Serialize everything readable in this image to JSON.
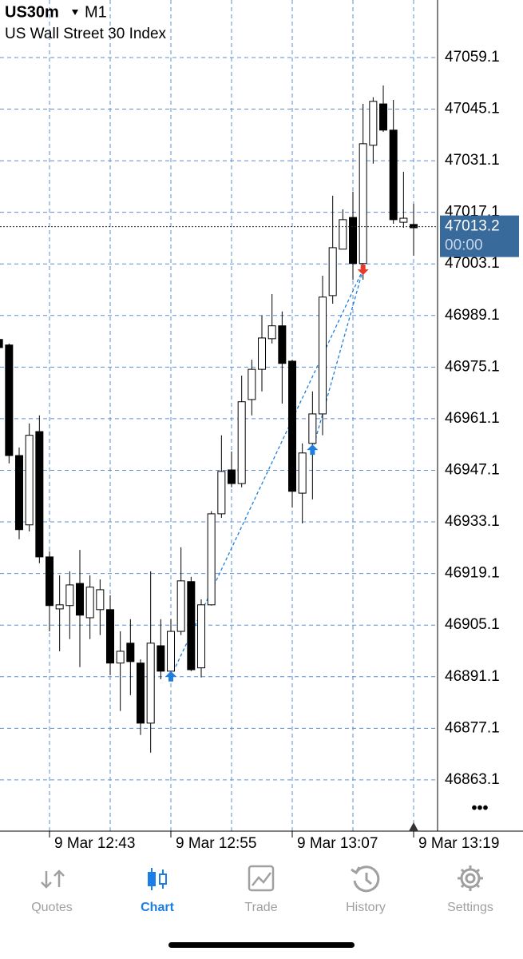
{
  "header": {
    "symbol": "US30m",
    "timeframe": "M1",
    "description": "US Wall Street 30 Index"
  },
  "menu": "•••",
  "chart_data": {
    "type": "candlestick",
    "categories": [
      null,
      null,
      null,
      null,
      null,
      "9 Mar 12:43",
      null,
      null,
      null,
      null,
      null,
      null,
      null,
      null,
      null,
      null,
      null,
      "9 Mar 12:55",
      null,
      null,
      null,
      null,
      null,
      null,
      null,
      null,
      null,
      null,
      null,
      "9 Mar 13:07",
      null,
      null,
      null,
      null,
      null,
      null,
      null,
      null,
      null,
      null,
      null,
      "9 Mar 13:19"
    ],
    "open": [
      46982.6,
      46981.1,
      46951.1,
      46932.3,
      46957.6,
      46923.6,
      46909.5,
      46910.4,
      46916.4,
      46907.1,
      46909.3,
      46909.3,
      46894.8,
      46900.2,
      46894.8,
      46878.5,
      46899.5,
      46892.6,
      46903.4,
      46916.9,
      46893.5,
      46910.6,
      46935.3,
      46947.2,
      46943.5,
      46966.3,
      46974.5,
      46982.8,
      46986.3,
      46976.7,
      46940.9,
      46954.4,
      46962.4,
      46994.5,
      47007.1,
      47015.7,
      47003.2,
      47035.3,
      47046.5,
      47039.4,
      47014.4,
      47013.8
    ],
    "high": [
      46983.7,
      46981.5,
      46953.3,
      46959.8,
      46962.0,
      46925.1,
      46918.6,
      46919.7,
      46925.5,
      46918.6,
      46917.5,
      46913.2,
      46903.4,
      46906.7,
      46895.8,
      46919.7,
      46906.7,
      46906.7,
      46926.2,
      46918.2,
      46912.1,
      46936.0,
      46956.6,
      46952.2,
      46972.8,
      46977.1,
      46989.1,
      46994.9,
      46990.2,
      46977.1,
      46954.4,
      46968.5,
      46999.9,
      47021.6,
      47017.9,
      47022.7,
      47046.5,
      47048.3,
      47051.5,
      47047.6,
      47028.1,
      47019.4
    ],
    "low": [
      46979.3,
      46949.0,
      46928.4,
      46930.5,
      46921.9,
      46903.4,
      46898.0,
      46901.3,
      46893.7,
      46901.3,
      46902.4,
      46891.5,
      46881.8,
      46886.1,
      46875.3,
      46870.5,
      46890.4,
      46891.5,
      46902.4,
      46892.6,
      46890.9,
      46910.4,
      46934.2,
      46942.5,
      46942.5,
      46962.0,
      46968.5,
      46981.5,
      46965.2,
      46937.0,
      46932.7,
      46939.2,
      46956.6,
      46992.3,
      47007.1,
      46998.8,
      46998.8,
      47030.3,
      47038.9,
      47014.0,
      47012.9,
      47005.3
    ],
    "close": [
      46980.4,
      46951.1,
      46931.0,
      46956.6,
      46923.6,
      46910.4,
      46910.6,
      46916.0,
      46907.8,
      46915.4,
      46914.7,
      46894.8,
      46898.0,
      46895.2,
      46878.5,
      46900.2,
      46892.6,
      46903.4,
      46917.1,
      46893.0,
      46910.6,
      46935.3,
      46946.8,
      46943.5,
      46965.7,
      46974.5,
      46983.0,
      46986.3,
      46976.1,
      46941.4,
      46951.8,
      46962.4,
      46994.1,
      47007.5,
      47015.1,
      47003.2,
      47035.7,
      47047.2,
      47039.4,
      47015.1,
      47015.5,
      47012.9
    ],
    "up_color": "#ffffff",
    "down_color": "#000000",
    "ylim": [
      46849.2,
      47074.7
    ],
    "yticks": [
      47059.1,
      47045.1,
      47031.1,
      47017.1,
      47003.1,
      46989.1,
      46975.1,
      46961.1,
      46947.1,
      46933.1,
      46919.1,
      46905.1,
      46891.1,
      46877.1,
      46863.1
    ],
    "grid": true,
    "current_price": 47013.2,
    "countdown": "00:00",
    "trades": [
      {
        "type": "buy",
        "index": 17,
        "price": 46891.1
      },
      {
        "type": "buy",
        "index": 31,
        "price": 46952.6
      },
      {
        "type": "sell",
        "index": 36,
        "price": 47001.6
      }
    ]
  },
  "tabs": [
    "Quotes",
    "Chart",
    "Trade",
    "History",
    "Settings"
  ],
  "active_tab": 1
}
